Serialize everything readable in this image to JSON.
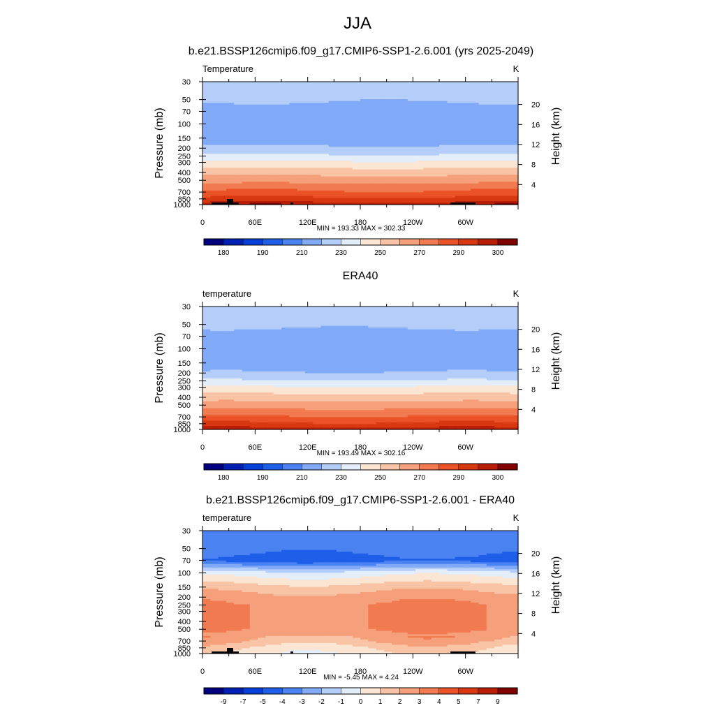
{
  "main_title": "JJA",
  "colors": {
    "temperature_scale": [
      "#00007f",
      "#0020b3",
      "#0040d9",
      "#1e5ee8",
      "#4a82f2",
      "#80aaf8",
      "#b4cef9",
      "#e4eefb",
      "#fbe6d4",
      "#f9c4a6",
      "#f5a07a",
      "#f27a50",
      "#ec5228",
      "#d8380f",
      "#b81d05",
      "#800000"
    ],
    "difference_scale": [
      "#00007f",
      "#0020b3",
      "#0040d9",
      "#1e5ee8",
      "#4a82f2",
      "#80aaf8",
      "#b4cef9",
      "#e4eefb",
      "#fbe6d4",
      "#f9c4a6",
      "#f5a07a",
      "#f27a50",
      "#ec5228",
      "#d8380f",
      "#b81d05",
      "#800000"
    ],
    "topography": "#000000"
  },
  "chart_data": [
    {
      "type": "heatmap",
      "title": "b.e21.BSSP126cmip6.f09_g17.CMIP6-SSP1-2.6.001 (yrs 2025-2049)",
      "left_label": "Temperature",
      "units": "K",
      "ylabel": "Pressure (mb)",
      "ylabel_right": "Height (km)",
      "x_ticks": [
        "0",
        "60E",
        "120E",
        "180",
        "120W",
        "60W"
      ],
      "y_ticks": [
        "30",
        "50",
        "70",
        "100",
        "150",
        "200",
        "250",
        "300",
        "400",
        "500",
        "700",
        "850",
        "1000"
      ],
      "y_ticks_right": [
        "20",
        "16",
        "12",
        "8",
        "4"
      ],
      "stats": "MIN = 193.33  MAX = 302.33",
      "colorbar_labels": [
        "180",
        "190",
        "210",
        "230",
        "250",
        "270",
        "290",
        "300"
      ],
      "pressure_levels": [
        30,
        50,
        70,
        100,
        150,
        200,
        250,
        300,
        400,
        500,
        700,
        850,
        1000
      ],
      "zonal_mean_profile": [
        216,
        211,
        206,
        201,
        204,
        212,
        222,
        232,
        246,
        256,
        272,
        283,
        295
      ],
      "min": 193.33,
      "max": 302.33,
      "topography": true
    },
    {
      "type": "heatmap",
      "title": "ERA40",
      "left_label": "temperature",
      "units": "K",
      "ylabel": "Pressure (mb)",
      "ylabel_right": "Height (km)",
      "x_ticks": [
        "0",
        "60E",
        "120E",
        "180",
        "120W",
        "60W"
      ],
      "y_ticks": [
        "30",
        "50",
        "70",
        "100",
        "150",
        "200",
        "250",
        "300",
        "400",
        "500",
        "700",
        "850",
        "1000"
      ],
      "y_ticks_right": [
        "20",
        "16",
        "12",
        "8",
        "4"
      ],
      "stats": "MIN = 193.49  MAX = 302.16",
      "colorbar_labels": [
        "180",
        "190",
        "210",
        "230",
        "250",
        "270",
        "290",
        "300"
      ],
      "pressure_levels": [
        30,
        50,
        70,
        100,
        150,
        200,
        250,
        300,
        400,
        500,
        700,
        850,
        1000
      ],
      "zonal_mean_profile": [
        218,
        212,
        206,
        201,
        203,
        211,
        221,
        231,
        245,
        255,
        271,
        282,
        294
      ],
      "min": 193.49,
      "max": 302.16,
      "topography": false
    },
    {
      "type": "heatmap",
      "title": "b.e21.BSSP126cmip6.f09_g17.CMIP6-SSP1-2.6.001 - ERA40",
      "left_label": "temperature",
      "units": "K",
      "ylabel": "Pressure (mb)",
      "ylabel_right": "Height (km)",
      "x_ticks": [
        "0",
        "60E",
        "120E",
        "180",
        "120W",
        "60W"
      ],
      "y_ticks": [
        "30",
        "50",
        "70",
        "100",
        "150",
        "200",
        "250",
        "300",
        "400",
        "500",
        "700",
        "850",
        "1000"
      ],
      "y_ticks_right": [
        "20",
        "16",
        "12",
        "8",
        "4"
      ],
      "stats": "MIN =  -5.45  MAX =   4.24",
      "colorbar_labels": [
        "-9",
        "-7",
        "-5",
        "-4",
        "-3",
        "-2",
        "-1",
        "0",
        "1",
        "2",
        "3",
        "4",
        "5",
        "7",
        "9"
      ],
      "pressure_levels": [
        30,
        50,
        70,
        100,
        150,
        200,
        250,
        300,
        400,
        500,
        700,
        850,
        1000
      ],
      "zonal_mean_profile": [
        -3.5,
        -3.5,
        -4.5,
        -0.5,
        1.5,
        2.5,
        3,
        3,
        3,
        3,
        2,
        1,
        0.5
      ],
      "min": -5.45,
      "max": 4.24,
      "topography": true
    }
  ]
}
